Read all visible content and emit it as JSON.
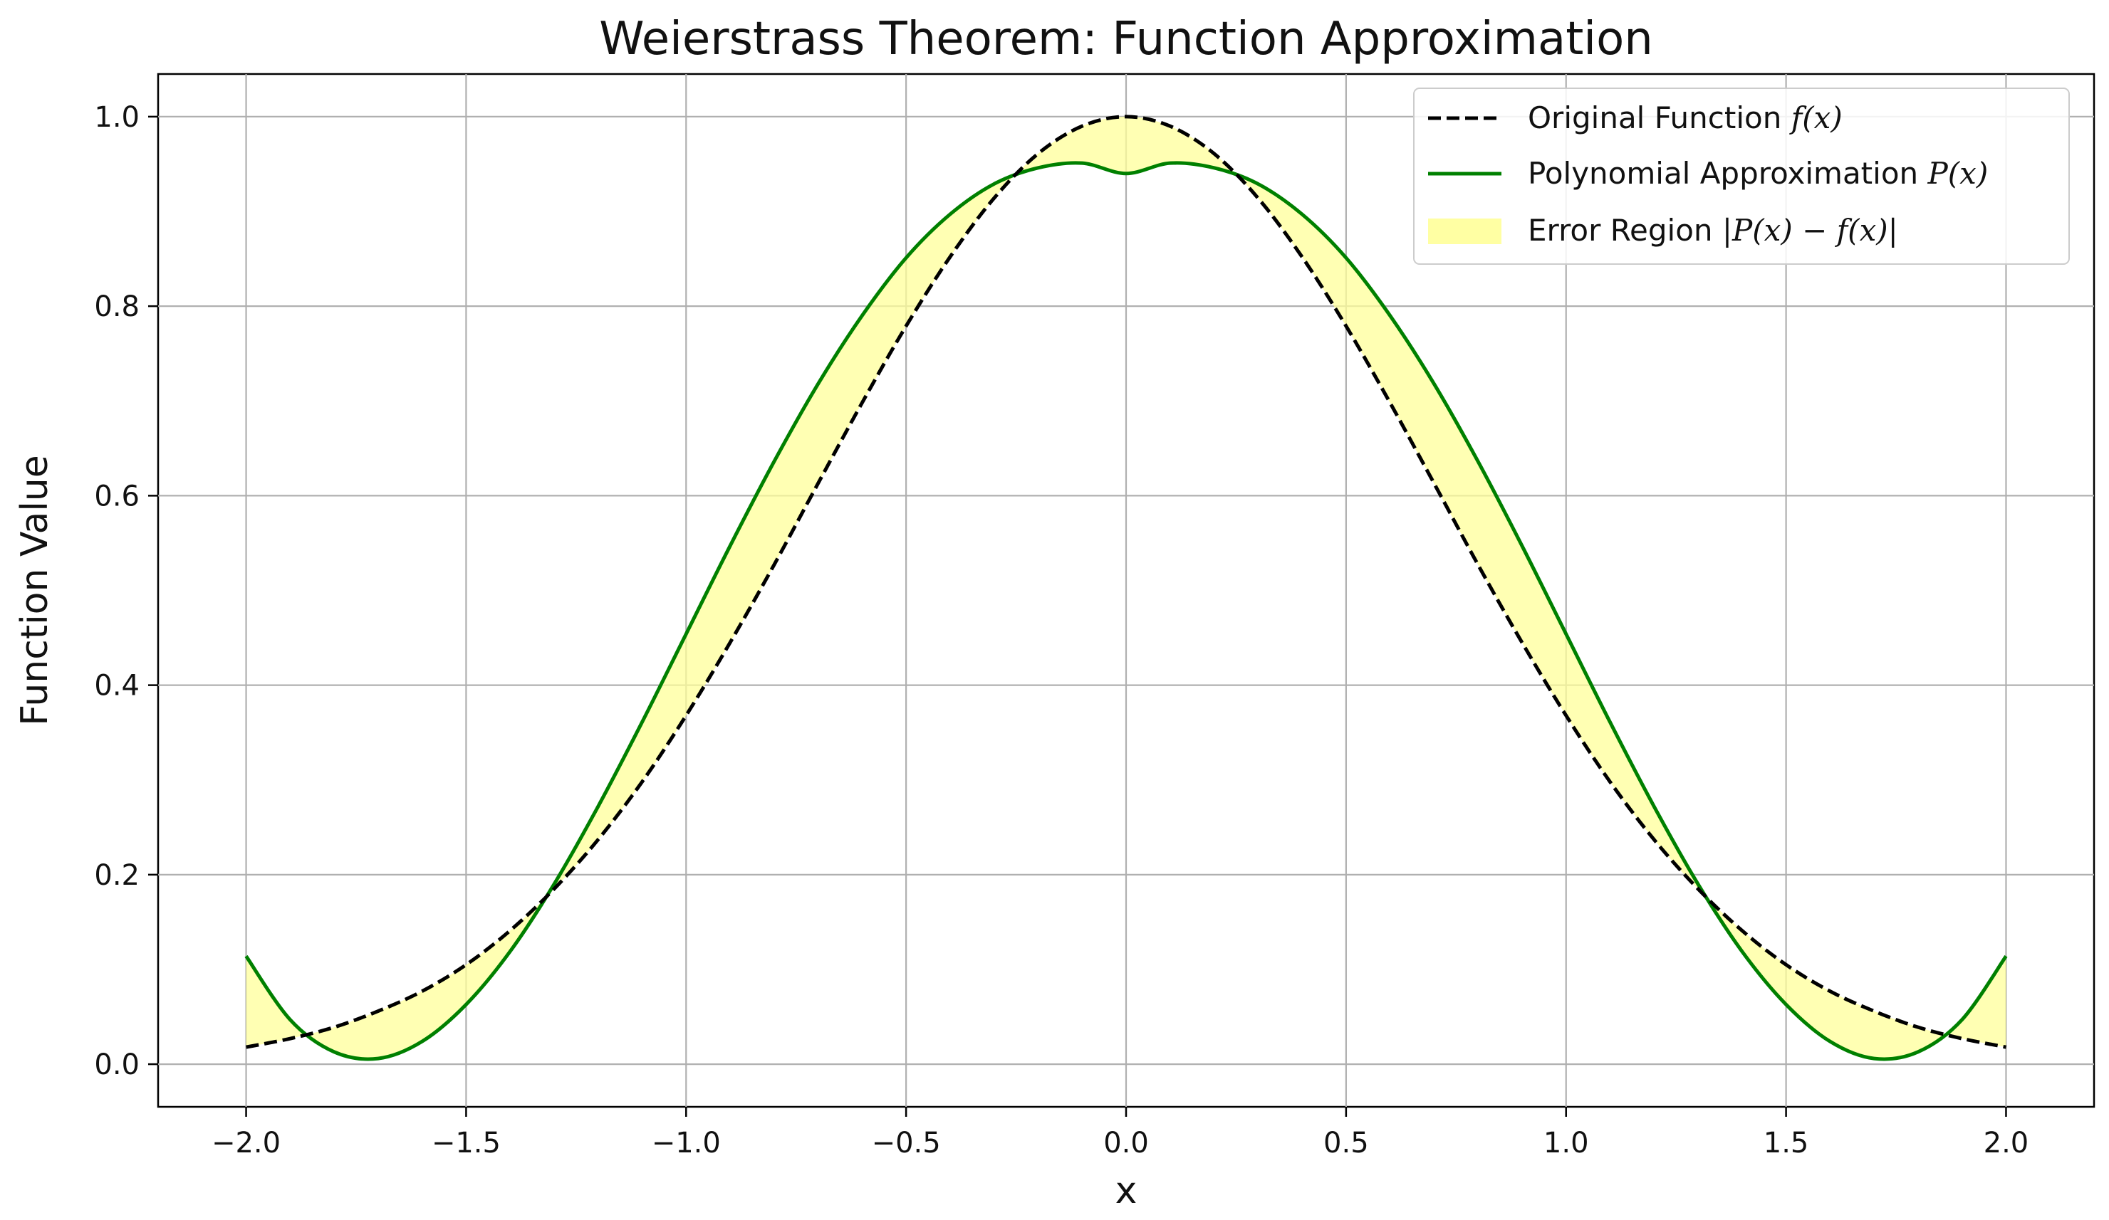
{
  "chart_data": {
    "type": "line",
    "title": "Weierstrass Theorem: Function Approximation",
    "xlabel": "x",
    "ylabel": "Function Value",
    "xlim": [
      -2.2,
      2.2
    ],
    "ylim": [
      -0.045,
      1.045
    ],
    "xticks": [
      -2.0,
      -1.5,
      -1.0,
      -0.5,
      0.0,
      0.5,
      1.0,
      1.5,
      2.0
    ],
    "xtick_labels": [
      "−2.0",
      "−1.5",
      "−1.0",
      "−0.5",
      "0.0",
      "0.5",
      "1.0",
      "1.5",
      "2.0"
    ],
    "yticks": [
      0.0,
      0.2,
      0.4,
      0.6,
      0.8,
      1.0
    ],
    "ytick_labels": [
      "0.0",
      "0.2",
      "0.4",
      "0.6",
      "0.8",
      "1.0"
    ],
    "grid": true,
    "legend_position": "top-right",
    "x": [
      -2.0,
      -1.9,
      -1.8,
      -1.7,
      -1.6,
      -1.5,
      -1.4,
      -1.3,
      -1.2,
      -1.1,
      -1.0,
      -0.9,
      -0.8,
      -0.7,
      -0.6,
      -0.5,
      -0.4,
      -0.3,
      -0.2,
      -0.1,
      0.0,
      0.1,
      0.2,
      0.3,
      0.4,
      0.5,
      0.6,
      0.7,
      0.8,
      0.9,
      1.0,
      1.1,
      1.2,
      1.3,
      1.4,
      1.5,
      1.6,
      1.7,
      1.8,
      1.9,
      2.0
    ],
    "series": [
      {
        "name": "Original Function",
        "name_math": "f(x)",
        "style": "dashed",
        "color": "#000000",
        "values": [
          0.018,
          0.027,
          0.039,
          0.056,
          0.077,
          0.105,
          0.141,
          0.185,
          0.237,
          0.298,
          0.368,
          0.445,
          0.527,
          0.613,
          0.698,
          0.779,
          0.852,
          0.914,
          0.961,
          0.99,
          1.0,
          0.99,
          0.961,
          0.914,
          0.852,
          0.779,
          0.698,
          0.613,
          0.527,
          0.445,
          0.368,
          0.298,
          0.237,
          0.185,
          0.141,
          0.105,
          0.077,
          0.056,
          0.039,
          0.027,
          0.018
        ]
      },
      {
        "name": "Polynomial Approximation",
        "name_math": "P(x)",
        "style": "solid",
        "color": "#008000",
        "values": [
          0.114,
          0.047,
          0.013,
          0.006,
          0.024,
          0.063,
          0.119,
          0.19,
          0.272,
          0.361,
          0.454,
          0.547,
          0.636,
          0.718,
          0.79,
          0.851,
          0.897,
          0.929,
          0.946,
          0.951,
          0.94,
          0.951,
          0.946,
          0.929,
          0.897,
          0.851,
          0.79,
          0.718,
          0.636,
          0.547,
          0.454,
          0.361,
          0.272,
          0.19,
          0.119,
          0.063,
          0.024,
          0.006,
          0.013,
          0.047,
          0.114
        ]
      }
    ],
    "fill_between": {
      "name": "Error Region",
      "name_math": "|P(x) − f(x)|",
      "color": "#ffff99",
      "opacity": 0.75
    }
  }
}
